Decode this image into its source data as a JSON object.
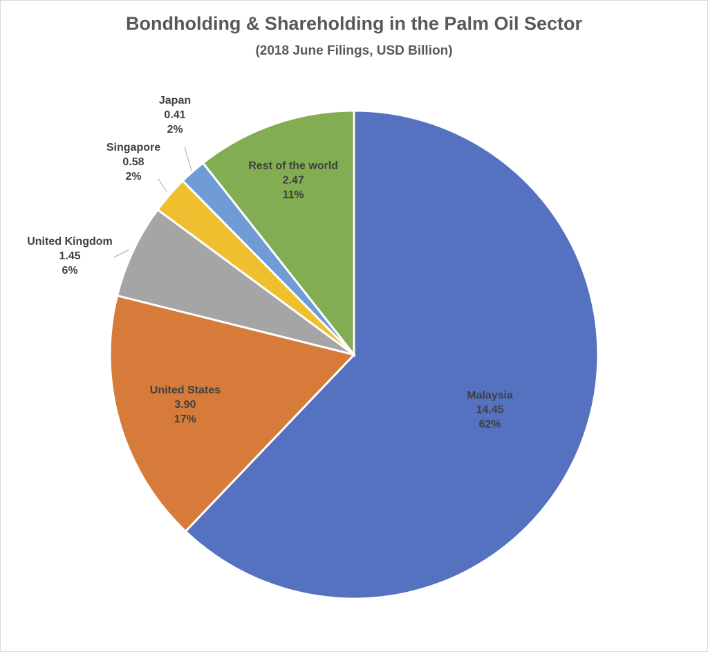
{
  "chart_data": {
    "type": "pie",
    "title": "Bondholding & Shareholding in the Palm Oil Sector",
    "subtitle": "(2018 June Filings, USD Billion)",
    "legend": "none",
    "slices": [
      {
        "label": "Malaysia",
        "value": 14.45,
        "value_label": "14.45",
        "percent_label": "62%",
        "color": "#5572c0"
      },
      {
        "label": "United States",
        "value": 3.9,
        "value_label": "3.90",
        "percent_label": "17%",
        "color": "#d67b3a"
      },
      {
        "label": "United Kingdom",
        "value": 1.45,
        "value_label": "1.45",
        "percent_label": "6%",
        "color": "#a5a5a5"
      },
      {
        "label": "Singapore",
        "value": 0.58,
        "value_label": "0.58",
        "percent_label": "2%",
        "color": "#eec02f"
      },
      {
        "label": "Japan",
        "value": 0.41,
        "value_label": "0.41",
        "percent_label": "2%",
        "color": "#6f9bd6"
      },
      {
        "label": "Rest of the world",
        "value": 2.47,
        "value_label": "2.47",
        "percent_label": "11%",
        "color": "#83ad52"
      }
    ]
  }
}
